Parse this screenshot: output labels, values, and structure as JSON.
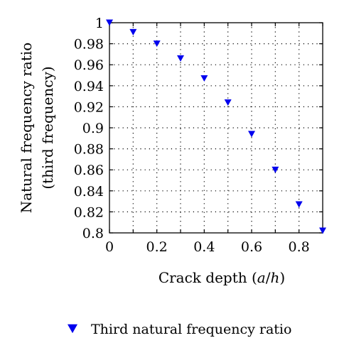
{
  "chart_data": {
    "type": "scatter",
    "xlabel": "Crack depth (a/h)",
    "xlabel_parts": {
      "prefix": "Crack depth (",
      "var1": "a",
      "slash": "/",
      "var2": "h",
      "suffix": ")"
    },
    "ylabel_line1": "Natural frequency ratio",
    "ylabel_line2": "(third frequency)",
    "xlim": [
      0,
      0.9
    ],
    "ylim": [
      0.8,
      1.0
    ],
    "x_ticks": [
      0,
      0.1,
      0.2,
      0.3,
      0.4,
      0.5,
      0.6,
      0.7,
      0.8,
      0.9
    ],
    "x_tick_labels": [
      "0",
      "0.2",
      "0.4",
      "0.6",
      "0.8"
    ],
    "x_tick_label_values": [
      0,
      0.2,
      0.4,
      0.6,
      0.8
    ],
    "y_ticks": [
      0.8,
      0.82,
      0.84,
      0.86,
      0.88,
      0.9,
      0.92,
      0.94,
      0.96,
      0.98,
      1.0
    ],
    "y_tick_labels": [
      "0.8",
      "0.82",
      "0.84",
      "0.86",
      "0.88",
      "0.9",
      "0.92",
      "0.94",
      "0.96",
      "0.98",
      "1"
    ],
    "grid": true,
    "legend_placement": "bottom",
    "series": [
      {
        "name": "Third natural frequency ratio",
        "marker": "triangle-down",
        "color": "#0000ee",
        "x": [
          0,
          0.1,
          0.2,
          0.3,
          0.4,
          0.5,
          0.6,
          0.7,
          0.8,
          0.9
        ],
        "y": [
          1.0,
          0.991,
          0.98,
          0.966,
          0.947,
          0.924,
          0.894,
          0.86,
          0.827,
          0.802
        ]
      }
    ]
  }
}
